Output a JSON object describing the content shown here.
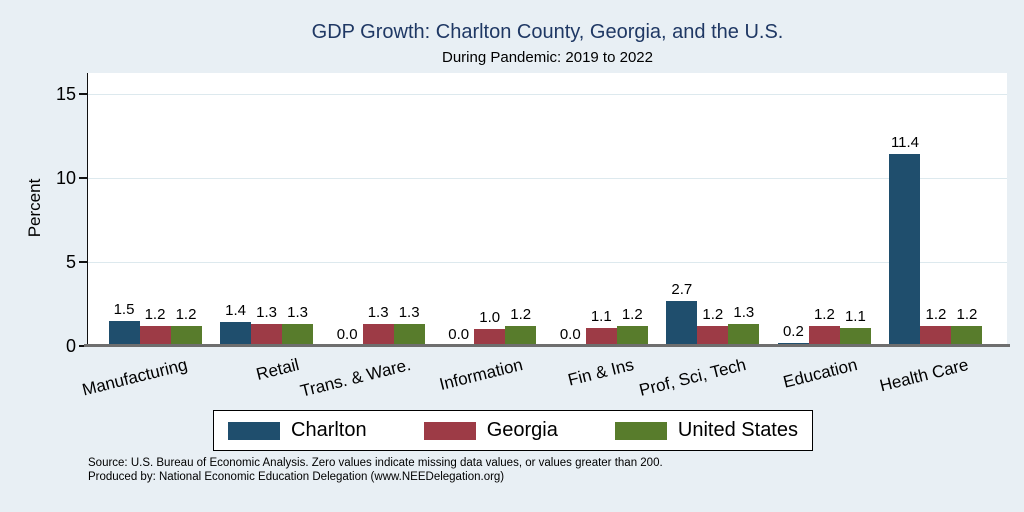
{
  "header": {
    "title": "GDP Growth: Charlton County, Georgia, and the U.S.",
    "subtitle": "During Pandemic: 2019 to 2022"
  },
  "colors": {
    "background": "#e8eff4",
    "plot_background": "#ffffff",
    "title_text": "#1f3864",
    "gridline": "#dde9ee",
    "charlton": "#1f4e6d",
    "georgia": "#9d3b46",
    "united_states": "#587c2c"
  },
  "chart_data": {
    "type": "bar",
    "title": "GDP Growth: Charlton County, Georgia, and the U.S.",
    "subtitle": "During Pandemic: 2019 to 2022",
    "ylabel": "Percent",
    "xlabel": "",
    "grid": true,
    "legend_position": "bottom",
    "value_labels": true,
    "yticks": [
      0,
      5,
      10,
      15
    ],
    "ylim": [
      0,
      16.25
    ],
    "categories": [
      "Manufacturing",
      "Retail",
      "Trans. & Ware.",
      "Information",
      "Fin & Ins",
      "Prof, Sci, Tech",
      "Education",
      "Health Care"
    ],
    "series": [
      {
        "name": "Charlton",
        "color": "#1f4e6d",
        "values": [
          1.5,
          1.4,
          0.0,
          0.0,
          0.0,
          2.7,
          0.2,
          11.4
        ]
      },
      {
        "name": "Georgia",
        "color": "#9d3b46",
        "values": [
          1.2,
          1.3,
          1.3,
          1.0,
          1.1,
          1.2,
          1.2,
          1.2
        ]
      },
      {
        "name": "United States",
        "color": "#587c2c",
        "values": [
          1.2,
          1.3,
          1.3,
          1.2,
          1.2,
          1.3,
          1.1,
          1.2
        ]
      }
    ]
  },
  "footer": {
    "line1": "Source: U.S. Bureau of Economic Analysis. Zero values indicate missing data values, or values greater than 200.",
    "line2": "Produced by: National Economic Education Delegation (www.NEEDelegation.org)"
  }
}
